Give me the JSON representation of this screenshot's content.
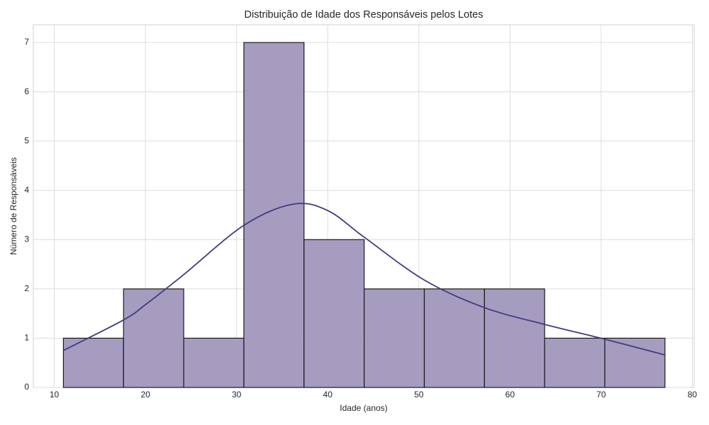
{
  "chart_data": {
    "type": "histogram",
    "title": "Distribuição de Idade dos Responsáveis pelos Lotes",
    "xlabel": "Idade (anos)",
    "ylabel": "Número de Responsáveis",
    "bins": [
      11,
      17.6,
      24.2,
      30.8,
      37.4,
      44,
      50.6,
      57.2,
      63.8,
      70.4,
      77
    ],
    "counts": [
      1,
      2,
      1,
      7,
      3,
      2,
      2,
      2,
      1,
      1
    ],
    "color": "#a197bd",
    "edgecolor": "#1a1a1a",
    "kde": {
      "color": "#433a80",
      "x": [
        11,
        17.6,
        20,
        24.2,
        30.8,
        36.2,
        40,
        44,
        50.6,
        57.2,
        63.8,
        70.4,
        77
      ],
      "values": [
        0.75,
        1.37,
        1.68,
        2.29,
        3.29,
        3.72,
        3.59,
        3.05,
        2.18,
        1.62,
        1.28,
        0.98,
        0.66
      ]
    },
    "xlim": [
      7.7,
      80.2
    ],
    "ylim": [
      0,
      7.36
    ],
    "xticks": [
      10,
      20,
      30,
      40,
      50,
      60,
      70,
      80
    ],
    "yticks": [
      0,
      1,
      2,
      3,
      4,
      5,
      6,
      7
    ],
    "grid": true
  }
}
